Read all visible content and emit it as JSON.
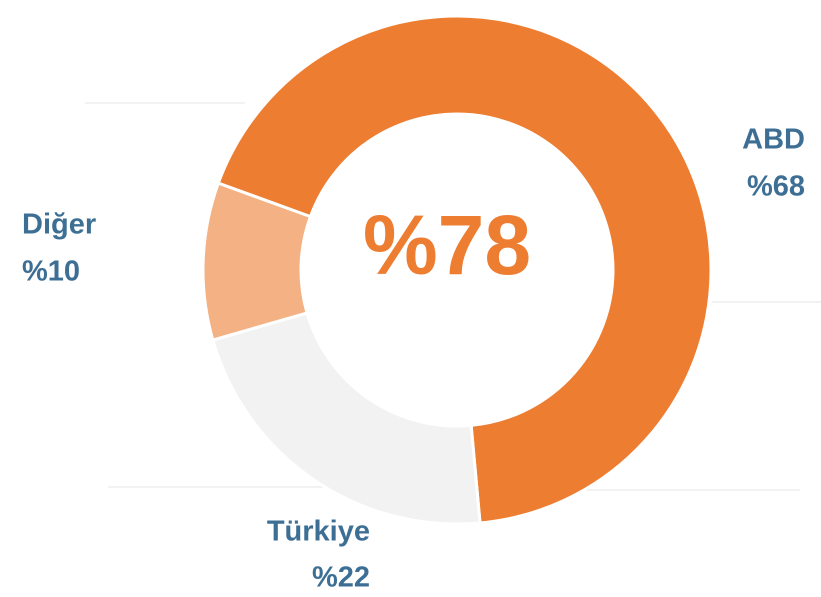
{
  "chart_data": {
    "type": "donut",
    "center_label": "%78",
    "categories": [
      "ABD",
      "Türkiye",
      "Diğer"
    ],
    "values": [
      68,
      22,
      10
    ],
    "value_labels": [
      "%68",
      "%22",
      "%10"
    ],
    "colors": [
      "#ED7D31",
      "#F2F2F2",
      "#F4B183"
    ]
  }
}
